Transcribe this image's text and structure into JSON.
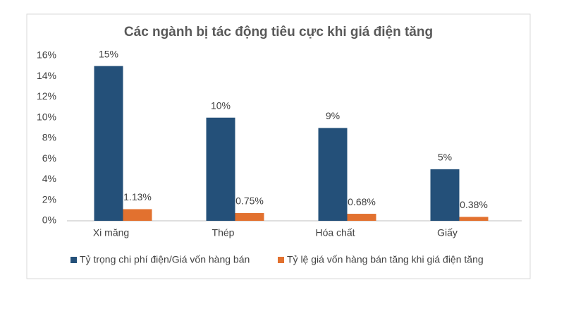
{
  "chart_data": {
    "type": "bar",
    "title": "Các ngành bị tác động tiêu cực khi giá điện tăng",
    "categories": [
      "Xi măng",
      "Thép",
      "Hóa chất",
      "Giấy"
    ],
    "series": [
      {
        "name": "Tỷ trọng chi phí điện/Giá vốn hàng bán",
        "color": "#245079",
        "values": [
          15,
          10,
          9,
          5
        ],
        "value_labels": [
          "15%",
          "10%",
          "9%",
          "5%"
        ]
      },
      {
        "name": "Tỷ lệ giá vốn hàng bán tăng khi giá điện tăng",
        "color": "#e2712f",
        "values": [
          1.13,
          0.75,
          0.68,
          0.38
        ],
        "value_labels": [
          "1.13%",
          "0.75%",
          "0.68%",
          "0.38%"
        ]
      }
    ],
    "ylim": [
      0,
      16
    ],
    "yticks": [
      {
        "value": 0,
        "label": "0%"
      },
      {
        "value": 2,
        "label": "2%"
      },
      {
        "value": 4,
        "label": "4%"
      },
      {
        "value": 6,
        "label": "6%"
      },
      {
        "value": 8,
        "label": "8%"
      },
      {
        "value": 10,
        "label": "10%"
      },
      {
        "value": 12,
        "label": "12%"
      },
      {
        "value": 14,
        "label": "14%"
      },
      {
        "value": 16,
        "label": "16%"
      }
    ],
    "grid": false,
    "legend": "bottom"
  }
}
